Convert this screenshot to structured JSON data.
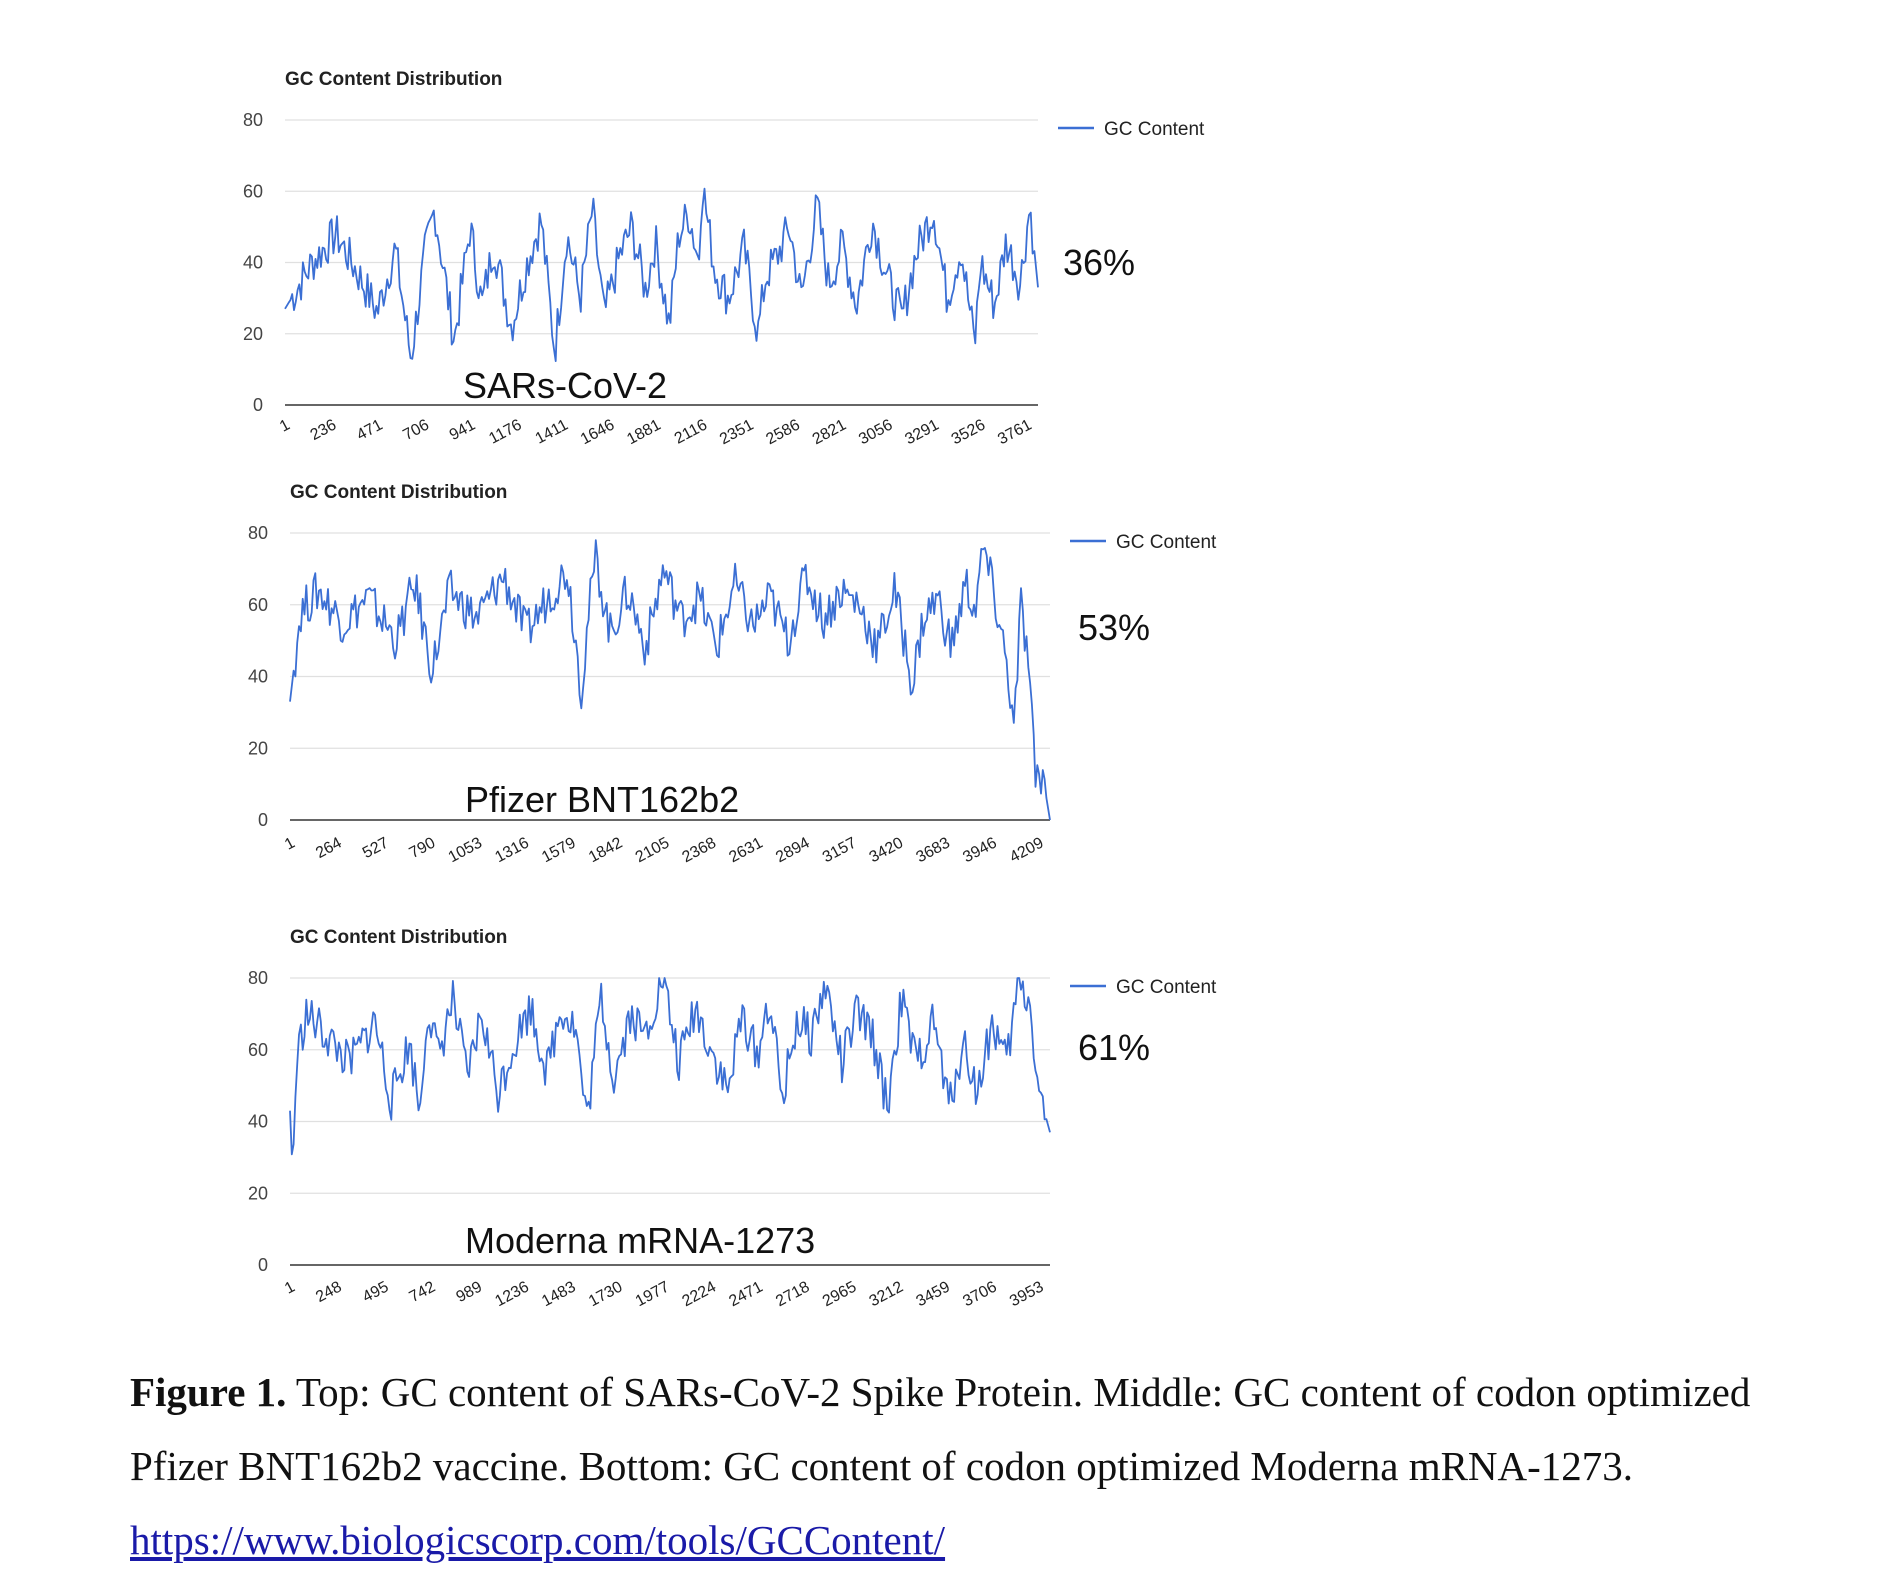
{
  "chart_data": [
    {
      "type": "line",
      "title": "GC Content Distribution",
      "ylim": [
        0,
        80
      ],
      "yticks": [
        0,
        20,
        40,
        60,
        80
      ],
      "x_ticks": [
        "1",
        "236",
        "471",
        "706",
        "941",
        "1176",
        "1411",
        "1646",
        "1881",
        "2116",
        "2351",
        "2586",
        "2821",
        "3056",
        "3291",
        "3526",
        "3761"
      ],
      "x_range": [
        1,
        3821
      ],
      "legend": "right",
      "grid": true,
      "series": [
        {
          "name": "GC Content",
          "color": "#3b6fd4",
          "x": [
            1,
            140,
            260,
            380,
            470,
            560,
            640,
            710,
            760,
            860,
            940,
            1000,
            1060,
            1150,
            1230,
            1300,
            1370,
            1430,
            1500,
            1560,
            1620,
            1700,
            1760,
            1830,
            1880,
            1950,
            2000,
            2050,
            2100,
            2116,
            2180,
            2250,
            2330,
            2400,
            2440,
            2500,
            2560,
            2620,
            2700,
            2760,
            2830,
            2900,
            2980,
            3060,
            3130,
            3200,
            3290,
            3360,
            3430,
            3500,
            3530,
            3600,
            3660,
            3730,
            3780,
            3821
          ],
          "values": [
            27,
            40,
            48,
            36,
            26,
            44,
            13,
            42,
            55,
            18,
            50,
            28,
            45,
            22,
            40,
            52,
            15,
            48,
            30,
            55,
            25,
            42,
            50,
            32,
            46,
            22,
            48,
            54,
            40,
            63,
            38,
            30,
            44,
            20,
            36,
            42,
            50,
            30,
            56,
            34,
            45,
            28,
            52,
            35,
            24,
            42,
            55,
            30,
            44,
            17,
            40,
            28,
            46,
            34,
            56,
            33
          ]
        }
      ],
      "annotation": "SARs-CoV-2",
      "percentage": "36%"
    },
    {
      "type": "line",
      "title": "GC Content Distribution",
      "ylim": [
        0,
        80
      ],
      "yticks": [
        0,
        20,
        40,
        60,
        80
      ],
      "x_ticks": [
        "1",
        "264",
        "527",
        "790",
        "1053",
        "1316",
        "1579",
        "1842",
        "2105",
        "2368",
        "2631",
        "2894",
        "3157",
        "3420",
        "3683",
        "3946",
        "4209"
      ],
      "x_range": [
        1,
        4273
      ],
      "legend": "right",
      "grid": true,
      "series": [
        {
          "name": "GC Content",
          "color": "#3b6fd4",
          "x": [
            1,
            60,
            160,
            300,
            440,
            600,
            700,
            800,
            900,
            1050,
            1200,
            1330,
            1450,
            1560,
            1640,
            1680,
            1720,
            1800,
            1900,
            2000,
            2100,
            2200,
            2300,
            2400,
            2500,
            2600,
            2700,
            2800,
            2900,
            3000,
            3100,
            3200,
            3300,
            3400,
            3500,
            3560,
            3640,
            3720,
            3800,
            3850,
            3900,
            3960,
            4000,
            4040,
            4070,
            4110,
            4150,
            4190,
            4230,
            4273
          ],
          "values": [
            33,
            58,
            64,
            55,
            62,
            50,
            66,
            42,
            64,
            56,
            68,
            52,
            62,
            70,
            36,
            58,
            73,
            52,
            64,
            48,
            70,
            56,
            62,
            48,
            66,
            54,
            62,
            50,
            68,
            56,
            64,
            60,
            48,
            64,
            38,
            56,
            62,
            48,
            66,
            58,
            76,
            62,
            52,
            40,
            24,
            60,
            44,
            12,
            13,
            0
          ]
        }
      ],
      "annotation": "Pfizer BNT162b2",
      "percentage": "53%"
    },
    {
      "type": "line",
      "title": "GC Content Distribution",
      "ylim": [
        0,
        80
      ],
      "yticks": [
        0,
        20,
        40,
        60,
        80
      ],
      "x_ticks": [
        "1",
        "248",
        "495",
        "742",
        "989",
        "1236",
        "1483",
        "1730",
        "1977",
        "2224",
        "2471",
        "2718",
        "2965",
        "3212",
        "3459",
        "3706",
        "3953"
      ],
      "x_range": [
        1,
        4200
      ],
      "legend": "right",
      "grid": true,
      "series": [
        {
          "name": "GC Content",
          "color": "#3b6fd4",
          "x": [
            1,
            15,
            40,
            90,
            200,
            330,
            470,
            560,
            660,
            720,
            760,
            820,
            900,
            980,
            1060,
            1150,
            1240,
            1330,
            1420,
            1500,
            1580,
            1640,
            1720,
            1790,
            1880,
            1960,
            2060,
            2150,
            2240,
            2330,
            2420,
            2500,
            2580,
            2650,
            2720,
            2800,
            2880,
            2960,
            3050,
            3130,
            3220,
            3300,
            3380,
            3460,
            3560,
            3640,
            3720,
            3800,
            3880,
            3960,
            4030,
            4090,
            4140,
            4200
          ],
          "values": [
            43,
            26,
            58,
            70,
            64,
            56,
            68,
            46,
            62,
            43,
            72,
            58,
            74,
            52,
            70,
            48,
            62,
            72,
            54,
            72,
            66,
            40,
            75,
            52,
            70,
            64,
            80,
            56,
            72,
            60,
            48,
            70,
            58,
            74,
            46,
            68,
            64,
            78,
            56,
            70,
            64,
            44,
            74,
            56,
            68,
            44,
            62,
            48,
            68,
            56,
            80,
            72,
            48,
            37
          ]
        }
      ],
      "annotation": "Moderna mRNA-1273",
      "percentage": "61%"
    }
  ],
  "caption": {
    "label": "Figure 1.",
    "text": "Top: GC content of SARs-CoV-2 Spike Protein. Middle: GC content of codon optimized Pfizer BNT162b2 vaccine. Bottom: GC content of codon optimized Moderna mRNA-1273.",
    "link": "https://www.biologicscorp.com/tools/GCContent/"
  }
}
